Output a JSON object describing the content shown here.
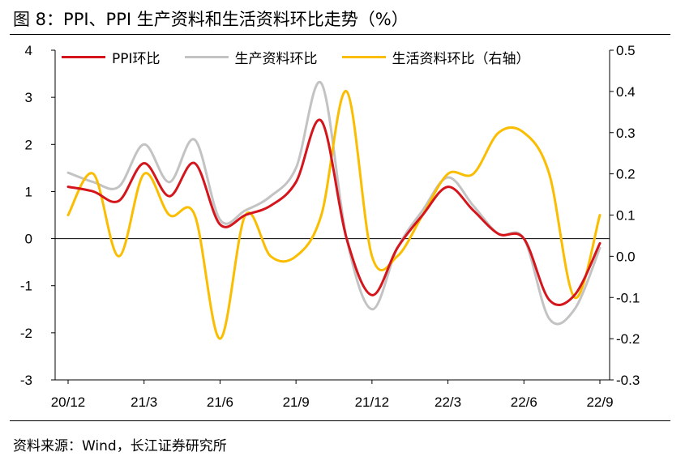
{
  "title": "图  8：PPI、PPI 生产资料和生活资料环比走势（%）",
  "source": "资料来源：Wind，长江证券研究所",
  "colors": {
    "ppi": "#d4151b",
    "production": "#c3c3c3",
    "living": "#fbbd00"
  },
  "chart_data": {
    "type": "line",
    "title": "PPI、PPI 生产资料和生活资料环比走势（%）",
    "x": [
      "20/12",
      "21/1",
      "21/2",
      "21/3",
      "21/4",
      "21/5",
      "21/6",
      "21/7",
      "21/8",
      "21/9",
      "21/10",
      "21/11",
      "21/12",
      "22/1",
      "22/2",
      "22/3",
      "22/4",
      "22/5",
      "22/6",
      "22/7",
      "22/8",
      "22/9"
    ],
    "x_tick_labels": [
      "20/12",
      "21/3",
      "21/6",
      "21/9",
      "21/12",
      "22/3",
      "22/6",
      "22/9"
    ],
    "y_left": {
      "ylim": [
        -3,
        4
      ],
      "ticks": [
        "4",
        "3",
        "2",
        "1",
        "0",
        "-1",
        "-2",
        "-3"
      ]
    },
    "y_right": {
      "ylim": [
        -0.3,
        0.5
      ],
      "ticks": [
        "0.5",
        "0.4",
        "0.3",
        "0.2",
        "0.1",
        "0.0",
        "-0.1",
        "-0.2",
        "-0.3"
      ],
      "label": "右轴"
    },
    "series": [
      {
        "name": "PPI环比",
        "axis": "left",
        "values": [
          1.1,
          1.0,
          0.8,
          1.6,
          0.9,
          1.6,
          0.3,
          0.5,
          0.7,
          1.2,
          2.5,
          0.0,
          -1.2,
          -0.2,
          0.5,
          1.1,
          0.6,
          0.1,
          0.0,
          -1.3,
          -1.2,
          -0.1
        ]
      },
      {
        "name": "生产资料环比",
        "axis": "left",
        "values": [
          1.4,
          1.2,
          1.1,
          2.0,
          1.2,
          2.1,
          0.4,
          0.6,
          0.9,
          1.5,
          3.3,
          0.0,
          -1.5,
          -0.2,
          0.6,
          1.3,
          0.7,
          0.1,
          0.0,
          -1.7,
          -1.5,
          -0.2
        ]
      },
      {
        "name": "生活资料环比（右轴）",
        "axis": "right",
        "values": [
          0.1,
          0.2,
          0.0,
          0.2,
          0.1,
          0.1,
          -0.2,
          0.1,
          0.0,
          0.0,
          0.1,
          0.4,
          0.0,
          0.0,
          0.1,
          0.2,
          0.2,
          0.3,
          0.3,
          0.2,
          -0.1,
          0.1
        ]
      }
    ],
    "grid": false,
    "legend_position": "top"
  }
}
